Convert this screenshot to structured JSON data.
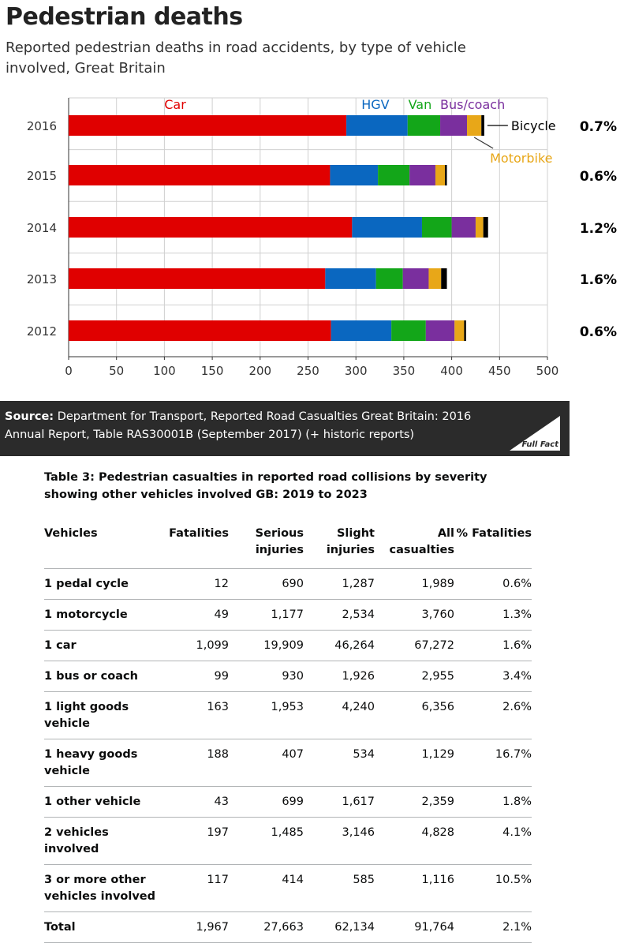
{
  "chart_data": {
    "type": "bar",
    "orientation": "horizontal",
    "stacked": true,
    "title": "Pedestrian deaths",
    "subtitle": "Reported pedestrian deaths in road accidents, by type of vehicle involved, Great Britain",
    "categories": [
      "2016",
      "2015",
      "2014",
      "2013",
      "2012"
    ],
    "series": [
      {
        "name": "Car",
        "color": "#e00000",
        "values": [
          290,
          273,
          296,
          268,
          274
        ]
      },
      {
        "name": "HGV",
        "color": "#0a67c0",
        "values": [
          64,
          50,
          73,
          53,
          63
        ]
      },
      {
        "name": "Van",
        "color": "#13a619",
        "values": [
          34,
          33,
          31,
          28,
          36
        ]
      },
      {
        "name": "Bus/coach",
        "color": "#7a2f9e",
        "values": [
          28,
          27,
          25,
          27,
          30
        ]
      },
      {
        "name": "Motorbike",
        "color": "#e8a718",
        "values": [
          15,
          10,
          8,
          13,
          10
        ]
      },
      {
        "name": "Bicycle",
        "color": "#000000",
        "values": [
          3,
          2,
          5,
          6,
          2
        ]
      }
    ],
    "bicycle_share_labels": [
      "0.7%",
      "0.6%",
      "1.2%",
      "1.6%",
      "0.6%"
    ],
    "xlim": [
      0,
      500
    ],
    "xticks": [
      "0",
      "50",
      "100",
      "150",
      "200",
      "250",
      "300",
      "350",
      "400",
      "450",
      "500"
    ],
    "grid": true
  },
  "source": {
    "label": "Source:",
    "text": "Department for Transport, Reported Road Casualties Great Britain: 2016 Annual Report, Table RAS30001B (September 2017) (+ historic reports)",
    "logo_text": "Full Fact"
  },
  "table": {
    "caption": "Table 3: Pedestrian casualties in reported road collisions by severity showing other vehicles involved GB: 2019 to 2023",
    "headers": [
      "Vehicles",
      "Fatalities",
      "Serious injuries",
      "Slight injuries",
      "All casualties",
      "% Fatalities"
    ],
    "rows": [
      [
        "1 pedal cycle",
        "12",
        "690",
        "1,287",
        "1,989",
        "0.6%"
      ],
      [
        "1 motorcycle",
        "49",
        "1,177",
        "2,534",
        "3,760",
        "1.3%"
      ],
      [
        "1 car",
        "1,099",
        "19,909",
        "46,264",
        "67,272",
        "1.6%"
      ],
      [
        "1 bus or coach",
        "99",
        "930",
        "1,926",
        "2,955",
        "3.4%"
      ],
      [
        "1 light goods vehicle",
        "163",
        "1,953",
        "4,240",
        "6,356",
        "2.6%"
      ],
      [
        "1 heavy goods vehicle",
        "188",
        "407",
        "534",
        "1,129",
        "16.7%"
      ],
      [
        "1 other vehicle",
        "43",
        "699",
        "1,617",
        "2,359",
        "1.8%"
      ],
      [
        "2 vehicles involved",
        "197",
        "1,485",
        "3,146",
        "4,828",
        "4.1%"
      ],
      [
        "3 or more other vehicles involved",
        "117",
        "414",
        "585",
        "1,116",
        "10.5%"
      ],
      [
        "Total",
        "1,967",
        "27,663",
        "62,134",
        "91,764",
        "2.1%"
      ]
    ]
  }
}
